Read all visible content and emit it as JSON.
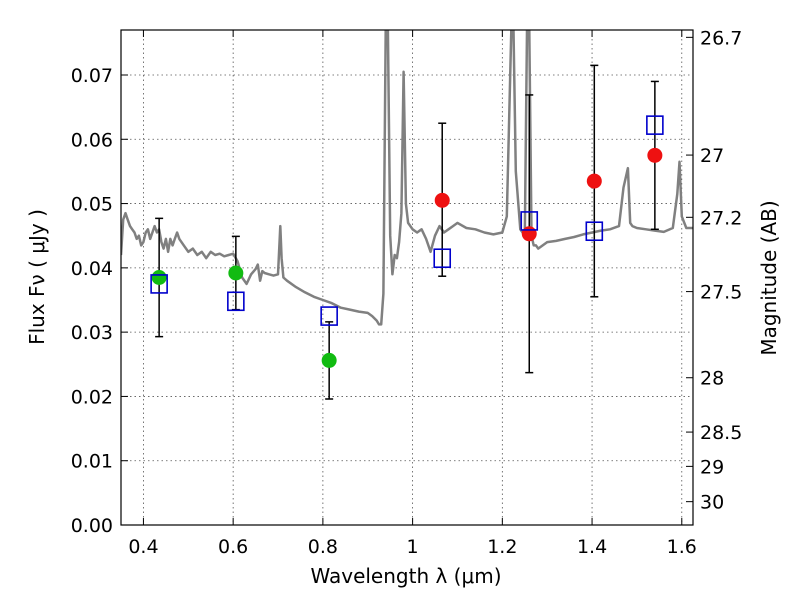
{
  "chart_data": {
    "type": "scatter",
    "xlabel": "Wavelength  λ (μm)",
    "ylabel": "Flux  Fν  ( μJy )",
    "ylabel_right": "Magnitude (AB)",
    "xlim": [
      0.35,
      1.625
    ],
    "ylim": [
      0,
      0.077
    ],
    "grid": true,
    "x_ticks": [
      0.4,
      0.6,
      0.8,
      1.0,
      1.2,
      1.4,
      1.6
    ],
    "x_tick_labels": [
      "0.4",
      "0.6",
      "0.8",
      "1",
      "1.2",
      "1.4",
      "1.6"
    ],
    "y_ticks": [
      0.0,
      0.01,
      0.02,
      0.03,
      0.04,
      0.05,
      0.06,
      0.07
    ],
    "y_tick_labels": [
      "0.00",
      "0.01",
      "0.02",
      "0.03",
      "0.04",
      "0.05",
      "0.06",
      "0.07"
    ],
    "mag_ticks": [
      "26.7",
      "27",
      "27.2",
      "27.5",
      "28",
      "28.5",
      "29",
      "30"
    ],
    "colors": {
      "template": "#808080",
      "optical": "#11bb11",
      "nir": "#ee1111",
      "model": "#0000cc",
      "errorbar": "#000000"
    },
    "series": [
      {
        "marker": "circle",
        "color": "#11bb11",
        "x": [
          0.435,
          0.606,
          0.814
        ],
        "y": [
          0.0385,
          0.0392,
          0.0256
        ],
        "yerr_low": [
          0.0293,
          0.0335,
          0.0196
        ],
        "yerr_high": [
          0.0477,
          0.0449,
          0.0316
        ]
      },
      {
        "marker": "circle",
        "color": "#ee1111",
        "x": [
          1.066,
          1.26,
          1.405,
          1.54
        ],
        "y": [
          0.0505,
          0.0453,
          0.0535,
          0.0575
        ],
        "yerr_low": [
          0.0387,
          0.0237,
          0.0355,
          0.046
        ],
        "yerr_high": [
          0.0625,
          0.0669,
          0.0715,
          0.069
        ]
      },
      {
        "marker": "square",
        "color": "#0000cc",
        "x": [
          0.435,
          0.606,
          0.814,
          1.066,
          1.26,
          1.405,
          1.54
        ],
        "y": [
          0.0375,
          0.0348,
          0.0325,
          0.0415,
          0.0473,
          0.0457,
          0.0622
        ]
      }
    ],
    "template_spectrum": {
      "x": [
        0.35,
        0.355,
        0.36,
        0.365,
        0.37,
        0.375,
        0.38,
        0.385,
        0.39,
        0.395,
        0.4,
        0.405,
        0.41,
        0.415,
        0.42,
        0.425,
        0.43,
        0.435,
        0.44,
        0.445,
        0.45,
        0.455,
        0.46,
        0.465,
        0.47,
        0.475,
        0.48,
        0.49,
        0.5,
        0.51,
        0.52,
        0.53,
        0.54,
        0.55,
        0.56,
        0.57,
        0.58,
        0.59,
        0.6,
        0.61,
        0.62,
        0.63,
        0.64,
        0.65,
        0.655,
        0.66,
        0.665,
        0.67,
        0.68,
        0.69,
        0.7,
        0.705,
        0.708,
        0.712,
        0.72,
        0.74,
        0.76,
        0.78,
        0.8,
        0.82,
        0.84,
        0.86,
        0.88,
        0.9,
        0.91,
        0.92,
        0.925,
        0.93,
        0.935,
        0.94,
        0.945,
        0.95,
        0.955,
        0.96,
        0.965,
        0.97,
        0.975,
        0.98,
        0.985,
        0.99,
        1.0,
        1.01,
        1.02,
        1.03,
        1.04,
        1.05,
        1.06,
        1.07,
        1.08,
        1.09,
        1.1,
        1.12,
        1.14,
        1.16,
        1.18,
        1.2,
        1.21,
        1.22,
        1.225,
        1.23,
        1.24,
        1.25,
        1.255,
        1.26,
        1.265,
        1.27,
        1.275,
        1.28,
        1.29,
        1.3,
        1.32,
        1.34,
        1.36,
        1.38,
        1.4,
        1.42,
        1.44,
        1.46,
        1.47,
        1.48,
        1.485,
        1.49,
        1.5,
        1.52,
        1.54,
        1.56,
        1.58,
        1.59,
        1.595,
        1.6,
        1.61,
        1.625
      ],
      "y": [
        0.042,
        0.0475,
        0.0485,
        0.0475,
        0.0465,
        0.046,
        0.0455,
        0.0445,
        0.045,
        0.0435,
        0.044,
        0.0455,
        0.046,
        0.0445,
        0.0455,
        0.0465,
        0.0455,
        0.046,
        0.044,
        0.043,
        0.0445,
        0.0425,
        0.0445,
        0.0435,
        0.0445,
        0.0455,
        0.0445,
        0.0435,
        0.0425,
        0.043,
        0.042,
        0.0425,
        0.0415,
        0.0425,
        0.042,
        0.0422,
        0.0418,
        0.042,
        0.0422,
        0.041,
        0.0385,
        0.0375,
        0.039,
        0.0398,
        0.0405,
        0.038,
        0.0395,
        0.0392,
        0.039,
        0.0388,
        0.039,
        0.0465,
        0.0415,
        0.0385,
        0.038,
        0.037,
        0.0362,
        0.0355,
        0.035,
        0.0345,
        0.0338,
        0.0335,
        0.0332,
        0.033,
        0.0325,
        0.0318,
        0.0312,
        0.0312,
        0.036,
        0.077,
        0.077,
        0.045,
        0.039,
        0.042,
        0.0415,
        0.044,
        0.0485,
        0.0705,
        0.05,
        0.047,
        0.046,
        0.0455,
        0.046,
        0.0445,
        0.0425,
        0.045,
        0.0465,
        0.0455,
        0.046,
        0.0465,
        0.047,
        0.0462,
        0.046,
        0.0455,
        0.0452,
        0.0455,
        0.048,
        0.077,
        0.077,
        0.055,
        0.046,
        0.045,
        0.077,
        0.077,
        0.045,
        0.0435,
        0.0435,
        0.043,
        0.0435,
        0.044,
        0.0442,
        0.0445,
        0.0448,
        0.0452,
        0.0455,
        0.0458,
        0.046,
        0.0465,
        0.0525,
        0.0555,
        0.047,
        0.0465,
        0.0462,
        0.046,
        0.0458,
        0.0456,
        0.0462,
        0.0515,
        0.0565,
        0.048,
        0.0462,
        0.0462
      ]
    }
  }
}
